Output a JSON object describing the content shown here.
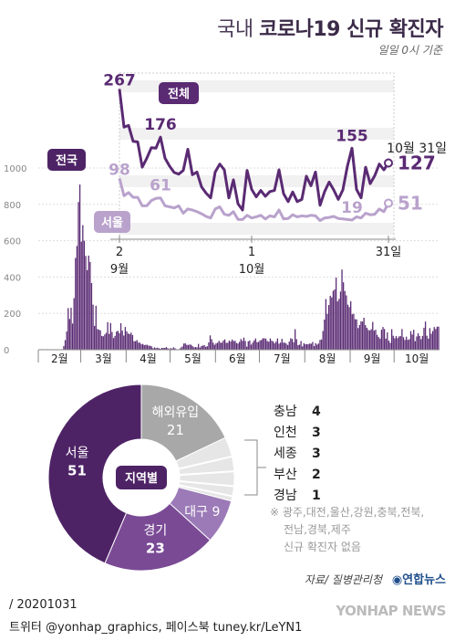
{
  "header": {
    "title_prefix": "국내",
    "title_main": "코로나19 신규 확진자",
    "subtitle": "일일 0시 기준"
  },
  "chart_data": [
    {
      "type": "bar",
      "series": [
        {
          "name": "전국"
        }
      ],
      "yticks": [
        0,
        200,
        400,
        600,
        800,
        1000
      ],
      "ylim": [
        0,
        1000
      ],
      "xticks": [
        "2월",
        "3월",
        "4월",
        "5월",
        "6월",
        "7월",
        "8월",
        "9월",
        "10월"
      ],
      "period_start": "2020-02-01",
      "period_end": "2020-10-31",
      "monthly_values": {
        "feb": [
          1,
          0,
          3,
          0,
          1,
          0,
          3,
          1,
          0,
          0,
          0,
          1,
          0,
          0,
          0,
          0,
          1,
          20,
          53,
          100,
          229,
          169,
          231,
          144,
          284,
          505,
          571,
          813,
          909
        ],
        "mar": [
          595,
          686,
          600,
          516,
          438,
          518,
          483,
          367,
          248,
          131,
          242,
          114,
          110,
          107,
          76,
          74,
          84,
          93,
          152,
          87,
          147,
          98,
          64,
          76,
          100,
          104,
          91,
          146,
          105,
          78,
          125
        ],
        "apr": [
          101,
          89,
          86,
          94,
          81,
          47,
          47,
          53,
          39,
          39,
          30,
          32,
          25,
          27,
          27,
          22,
          22,
          18,
          8,
          13,
          9,
          11,
          8,
          6,
          10,
          10,
          10,
          14,
          9,
          4
        ],
        "may": [
          9,
          6,
          13,
          8,
          3,
          2,
          4,
          12,
          18,
          34,
          35,
          27,
          26,
          29,
          27,
          19,
          13,
          15,
          13,
          32,
          12,
          20,
          23,
          25,
          16,
          19,
          40,
          79,
          58,
          39,
          27
        ],
        "jun": [
          35,
          38,
          49,
          39,
          39,
          51,
          57,
          38,
          38,
          50,
          45,
          56,
          48,
          49,
          37,
          34,
          43,
          59,
          49,
          67,
          48,
          17,
          46,
          51,
          28,
          39,
          51,
          62,
          42,
          43
        ],
        "jul": [
          51,
          54,
          63,
          63,
          61,
          48,
          44,
          62,
          50,
          45,
          35,
          44,
          62,
          33,
          39,
          60,
          39,
          39,
          34,
          26,
          45,
          63,
          59,
          41,
          113,
          58,
          25,
          28,
          48,
          18,
          36
        ],
        "aug": [
          30,
          31,
          30,
          34,
          33,
          43,
          20,
          36,
          28,
          34,
          54,
          56,
          103,
          166,
          279,
          197,
          246,
          297,
          288,
          324,
          332,
          397,
          266,
          280,
          320,
          441,
          371,
          323,
          299,
          248,
          235
        ],
        "sep": [
          267,
          195,
          198,
          168,
          167,
          119,
          136,
          156,
          155,
          176,
          136,
          121,
          109,
          106,
          113,
          153,
          105,
          110,
          82,
          70,
          61,
          110,
          125,
          114,
          61,
          95,
          50,
          38,
          113,
          77
        ],
        "oct": [
          63,
          75,
          64,
          73,
          75,
          114,
          69,
          54,
          72,
          54,
          58,
          102,
          84,
          110,
          47,
          73,
          91,
          76,
          58,
          76,
          121,
          155,
          77,
          61,
          119,
          88,
          103,
          125,
          114,
          127,
          127
        ]
      }
    },
    {
      "type": "line",
      "x_start": "2020-09-02",
      "x_end": "2020-10-31",
      "xticks": [
        {
          "label": "2",
          "sublabel": "9월"
        },
        {
          "label": "1",
          "sublabel": "10월"
        },
        {
          "label": "31일",
          "sublabel": ""
        }
      ],
      "annotation_date": "10월 31일",
      "series": [
        {
          "name": "전체",
          "color": "#5a2a73",
          "values": [
            267,
            195,
            198,
            168,
            167,
            119,
            136,
            156,
            155,
            176,
            136,
            121,
            109,
            106,
            113,
            153,
            105,
            110,
            82,
            70,
            61,
            110,
            125,
            114,
            61,
            95,
            50,
            38,
            113,
            77,
            63,
            75,
            64,
            73,
            75,
            114,
            69,
            54,
            72,
            54,
            58,
            102,
            84,
            110,
            47,
            73,
            91,
            76,
            58,
            76,
            121,
            155,
            77,
            61,
            119,
            88,
            103,
            125,
            114,
            127
          ],
          "labels": [
            {
              "index": 0,
              "text": "267"
            },
            {
              "index": 9,
              "text": "176"
            },
            {
              "index": 51,
              "text": "155"
            },
            {
              "index": 59,
              "text": "127"
            }
          ]
        },
        {
          "name": "서울",
          "color": "#b9a2cc",
          "values": [
            98,
            65,
            71,
            62,
            62,
            46,
            46,
            56,
            60,
            61,
            46,
            44,
            42,
            46,
            32,
            40,
            38,
            35,
            31,
            26,
            23,
            40,
            44,
            30,
            28,
            35,
            20,
            20,
            28,
            23,
            25,
            28,
            21,
            27,
            25,
            38,
            21,
            22,
            29,
            25,
            27,
            26,
            28,
            27,
            18,
            23,
            24,
            26,
            22,
            21,
            20,
            19,
            25,
            23,
            32,
            29,
            30,
            40,
            35,
            51
          ],
          "labels": [
            {
              "index": 0,
              "text": "98"
            },
            {
              "index": 9,
              "text": "61"
            },
            {
              "index": 51,
              "text": "19"
            },
            {
              "index": 59,
              "text": "51"
            }
          ]
        }
      ]
    },
    {
      "type": "pie",
      "center_label": "지역별",
      "slices": [
        {
          "label": "해외유입",
          "value": 21,
          "color": "#a8a8a8"
        },
        {
          "label": "",
          "value": 13,
          "color": "#e6e6e6"
        },
        {
          "label": "대구",
          "value": 9,
          "color": "#9b7ab7"
        },
        {
          "label": "경기",
          "value": 23,
          "color": "#7a4a95"
        },
        {
          "label": "서울",
          "value": 51,
          "color": "#4e2366"
        }
      ],
      "regions": [
        {
          "name": "충남",
          "value": "4"
        },
        {
          "name": "인천",
          "value": "3"
        },
        {
          "name": "세종",
          "value": "3"
        },
        {
          "name": "부산",
          "value": "2"
        },
        {
          "name": "경남",
          "value": "1"
        }
      ],
      "note_lines": [
        "※ 광주,대전,울산,강원,충북,전북,",
        "전남,경북,제주",
        "신규 확진자 없음"
      ]
    }
  ],
  "footer": {
    "source": "자료/ 질병관리청",
    "logo_text": "연합뉴스",
    "date_line": "/ 20201031",
    "social_line": "트위터 @yonhap_graphics, 페이스북 tuney.kr/LeYN1",
    "agency": "YONHAP NEWS"
  }
}
